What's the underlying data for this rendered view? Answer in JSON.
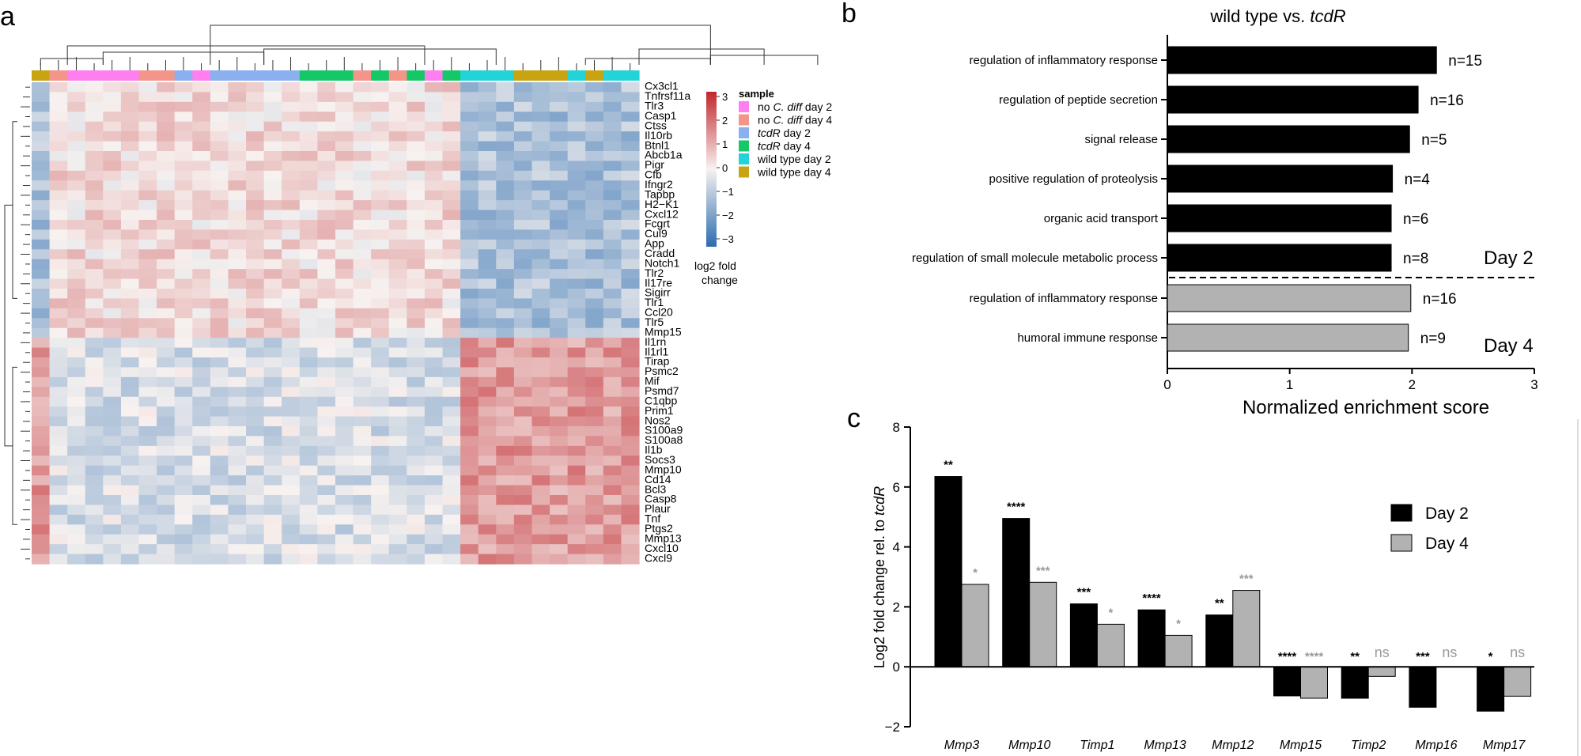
{
  "panel_labels": {
    "a": "a",
    "b": "b",
    "c": "c"
  },
  "heatmap": {
    "legend_title": "sample",
    "legend_items": [
      {
        "prefix": "no ",
        "italic": "C. diff",
        "suffix": " day 2",
        "color": "#ff7ef0"
      },
      {
        "prefix": "no ",
        "italic": "C. diff",
        "suffix": " day 4",
        "color": "#f4958a"
      },
      {
        "prefix": "",
        "italic": "tcdR",
        "suffix": " day 2",
        "color": "#8ab0ef"
      },
      {
        "prefix": "",
        "italic": "tcdR",
        "suffix": " day 4",
        "color": "#14c868"
      },
      {
        "prefix": "",
        "italic": "",
        "suffix": "wild type day 2",
        "color": "#22d3d8"
      },
      {
        "prefix": "",
        "italic": "",
        "suffix": "wild type day 4",
        "color": "#c8a412"
      }
    ],
    "colorbar_ticks": [
      "3",
      "2",
      "1",
      "0",
      "−1",
      "−2",
      "−3"
    ],
    "colorbar_label_1": "log2 fold",
    "colorbar_label_2": "change",
    "colors": {
      "high": "#c0272d",
      "mid": "#f7f2f0",
      "low": "#2b6cb0"
    }
  },
  "chart_data": [
    {
      "type": "heatmap",
      "title": "",
      "value_range": [
        -3,
        3
      ],
      "rows": [
        "Cx3cl1",
        "Tnfrsf11a",
        "Tlr3",
        "Casp1",
        "Ctss",
        "Il10rb",
        "Btnl1",
        "Abcb1a",
        "Pigr",
        "Cfb",
        "Ifngr2",
        "Tapbp",
        "H2−K1",
        "Cxcl12",
        "Fcgrt",
        "Cul9",
        "App",
        "Cradd",
        "Notch1",
        "Tlr2",
        "Il17re",
        "Sigirr",
        "Tlr1",
        "Ccl20",
        "Tlr5",
        "Mmp15",
        "Il1rn",
        "Il1rl1",
        "Tirap",
        "Psmc2",
        "Mif",
        "Psmd7",
        "C1qbp",
        "Prim1",
        "Nos2",
        "S100a9",
        "S100a8",
        "Il1b",
        "Socs3",
        "Mmp10",
        "Cd14",
        "Bcl3",
        "Casp8",
        "Plaur",
        "Tnf",
        "Ptgs2",
        "Mmp13",
        "Cxcl10",
        "Cxcl9"
      ],
      "column_groups": [
        {
          "group": "wild type day 4",
          "count": 1
        },
        {
          "group": "no C. diff day 4",
          "count": 1
        },
        {
          "group": "no C. diff day 2",
          "count": 4
        },
        {
          "group": "no C. diff day 4",
          "count": 2
        },
        {
          "group": "tcdR day 2",
          "count": 1
        },
        {
          "group": "no C. diff day 2",
          "count": 1
        },
        {
          "group": "tcdR day 2",
          "count": 5
        },
        {
          "group": "tcdR day 4",
          "count": 3
        },
        {
          "group": "no C. diff day 4",
          "count": 1
        },
        {
          "group": "tcdR day 4",
          "count": 1
        },
        {
          "group": "no C. diff day 4",
          "count": 1
        },
        {
          "group": "tcdR day 4",
          "count": 1
        },
        {
          "group": "no C. diff day 2",
          "count": 1
        },
        {
          "group": "tcdR day 4",
          "count": 1
        },
        {
          "group": "wild type day 2",
          "count": 3
        },
        {
          "group": "wild type day 4",
          "count": 3
        },
        {
          "group": "wild type day 2",
          "count": 1
        },
        {
          "group": "wild type day 4",
          "count": 1
        },
        {
          "group": "wild type day 2",
          "count": 2
        }
      ],
      "cluster_pattern": "upper 26 genes up in control/tcdR samples and down in wild type; lower 23 genes down in control/tcdR samples and up in wild type"
    },
    {
      "type": "bar",
      "orientation": "horizontal",
      "title_prefix": "wild type vs. ",
      "title_italic": "tcdR",
      "xlabel": "Normalized enrichment score",
      "xlim": [
        0,
        3
      ],
      "xticks": [
        "0",
        "1",
        "2",
        "3"
      ],
      "bars": [
        {
          "term": "regulation of inflammatory response",
          "value": 2.2,
          "n": "n=15",
          "day": 2
        },
        {
          "term": "regulation of peptide secretion",
          "value": 2.05,
          "n": "n=16",
          "day": 2
        },
        {
          "term": "signal release",
          "value": 1.98,
          "n": "n=5",
          "day": 2
        },
        {
          "term": "positive regulation of proteolysis",
          "value": 1.84,
          "n": "n=4",
          "day": 2
        },
        {
          "term": "organic acid transport",
          "value": 1.83,
          "n": "n=6",
          "day": 2
        },
        {
          "term": "regulation of small molecule metabolic process",
          "value": 1.83,
          "n": "n=8",
          "day": 2
        },
        {
          "term": "regulation of inflammatory response",
          "value": 1.99,
          "n": "n=16",
          "day": 4
        },
        {
          "term": "humoral immune response",
          "value": 1.97,
          "n": "n=9",
          "day": 4
        }
      ],
      "group_labels": [
        "Day 2",
        "Day 4"
      ],
      "colors": {
        "day2": "#000000",
        "day4": "#b2b2b2"
      }
    },
    {
      "type": "bar",
      "orientation": "vertical",
      "ylabel_prefix": "Log2 fold change rel. to ",
      "ylabel_italic": "tcdR",
      "ylim": [
        -2,
        8
      ],
      "yticks": [
        "−2",
        "0",
        "2",
        "4",
        "6",
        "8"
      ],
      "categories": [
        "Mmp3",
        "Mmp10",
        "Timp1",
        "Mmp13",
        "Mmp12",
        "Mmp15",
        "Timp2",
        "Mmp16",
        "Mmp17"
      ],
      "series": [
        {
          "name": "Day 2",
          "color": "#000000",
          "values": [
            6.35,
            4.95,
            2.1,
            1.9,
            1.73,
            -0.97,
            -1.05,
            -1.35,
            -1.48
          ],
          "significance": [
            "**",
            "****",
            "***",
            "****",
            "**",
            "****",
            "**",
            "***",
            "*"
          ]
        },
        {
          "name": "Day 4",
          "color": "#b2b2b2",
          "values": [
            2.75,
            2.82,
            1.42,
            1.05,
            2.55,
            -1.05,
            -0.32,
            null,
            -0.98
          ],
          "significance": [
            "*",
            "***",
            "*",
            "*",
            "***",
            "****",
            "ns",
            "ns",
            "ns"
          ]
        }
      ]
    }
  ]
}
